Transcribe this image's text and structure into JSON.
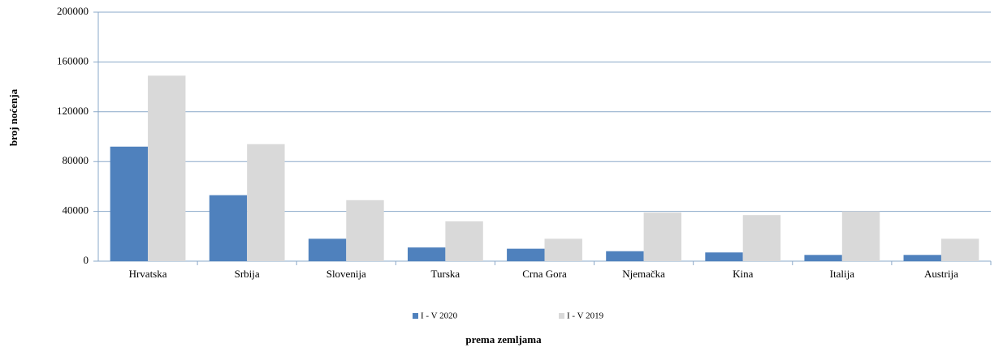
{
  "chart_data": {
    "type": "bar",
    "y_label": "broj noćenja",
    "x_label": "prema zemljama",
    "categories": [
      "Hrvatska",
      "Srbija",
      "Slovenija",
      "Turska",
      "Crna Gora",
      "Njemačka",
      "Kina",
      "Italija",
      "Austrija"
    ],
    "series": [
      {
        "name": "I - V 2020",
        "color": "#4f81bd",
        "values": [
          92000,
          53000,
          18000,
          11000,
          10000,
          8000,
          7000,
          5000,
          5000
        ]
      },
      {
        "name": "I - V 2019",
        "color": "#d9d9d9",
        "values": [
          149000,
          94000,
          49000,
          32000,
          18000,
          39000,
          37000,
          40000,
          18000
        ]
      }
    ],
    "ylim": [
      0,
      200000
    ],
    "yticks": [
      0,
      40000,
      80000,
      120000,
      160000,
      200000
    ],
    "grid": true,
    "legend": "bottom"
  }
}
